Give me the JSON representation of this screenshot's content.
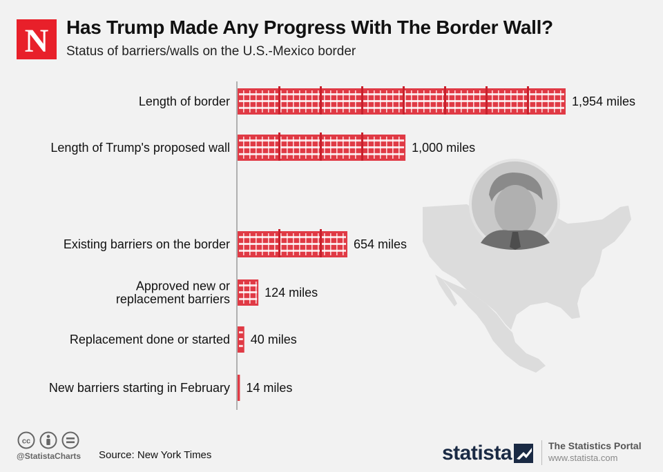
{
  "header": {
    "logo_letter": "N",
    "title": "Has Trump Made Any Progress With The Border Wall?",
    "subtitle": "Status of barriers/walls on the U.S.-Mexico border"
  },
  "colors": {
    "bar": "#e03a45",
    "bar_dark": "#c8202c",
    "accent_logo": "#e8202a",
    "map": "#dcdcdc"
  },
  "chart_data": {
    "type": "bar",
    "orientation": "horizontal",
    "categories": [
      "Length of border",
      "Length of Trump's proposed wall",
      "Existing barriers on the border",
      "Approved new or replacement barriers",
      "Replacement done or started",
      "New barriers starting in February"
    ],
    "values": [
      1954,
      1000,
      654,
      124,
      40,
      14
    ],
    "value_labels": [
      "1,954 miles",
      "1,000 miles",
      "654 miles",
      "124  miles",
      "40 miles",
      "14 miles"
    ],
    "label_lines": [
      [
        "Length of border"
      ],
      [
        "Length of Trump's proposed wall"
      ],
      [
        "Existing barriers on the border"
      ],
      [
        "Approved new or",
        "replacement barriers"
      ],
      [
        "Replacement done or started"
      ],
      [
        "New barriers starting in February"
      ]
    ],
    "unit": "miles",
    "grid": false
  },
  "footer": {
    "icons": [
      "cc-icon",
      "attribution-icon",
      "no-derivatives-icon"
    ],
    "handle": "@StatistaCharts",
    "source": "Source: New York Times",
    "brand": "statista",
    "portal": "The Statistics Portal",
    "url": "www.statista.com"
  }
}
